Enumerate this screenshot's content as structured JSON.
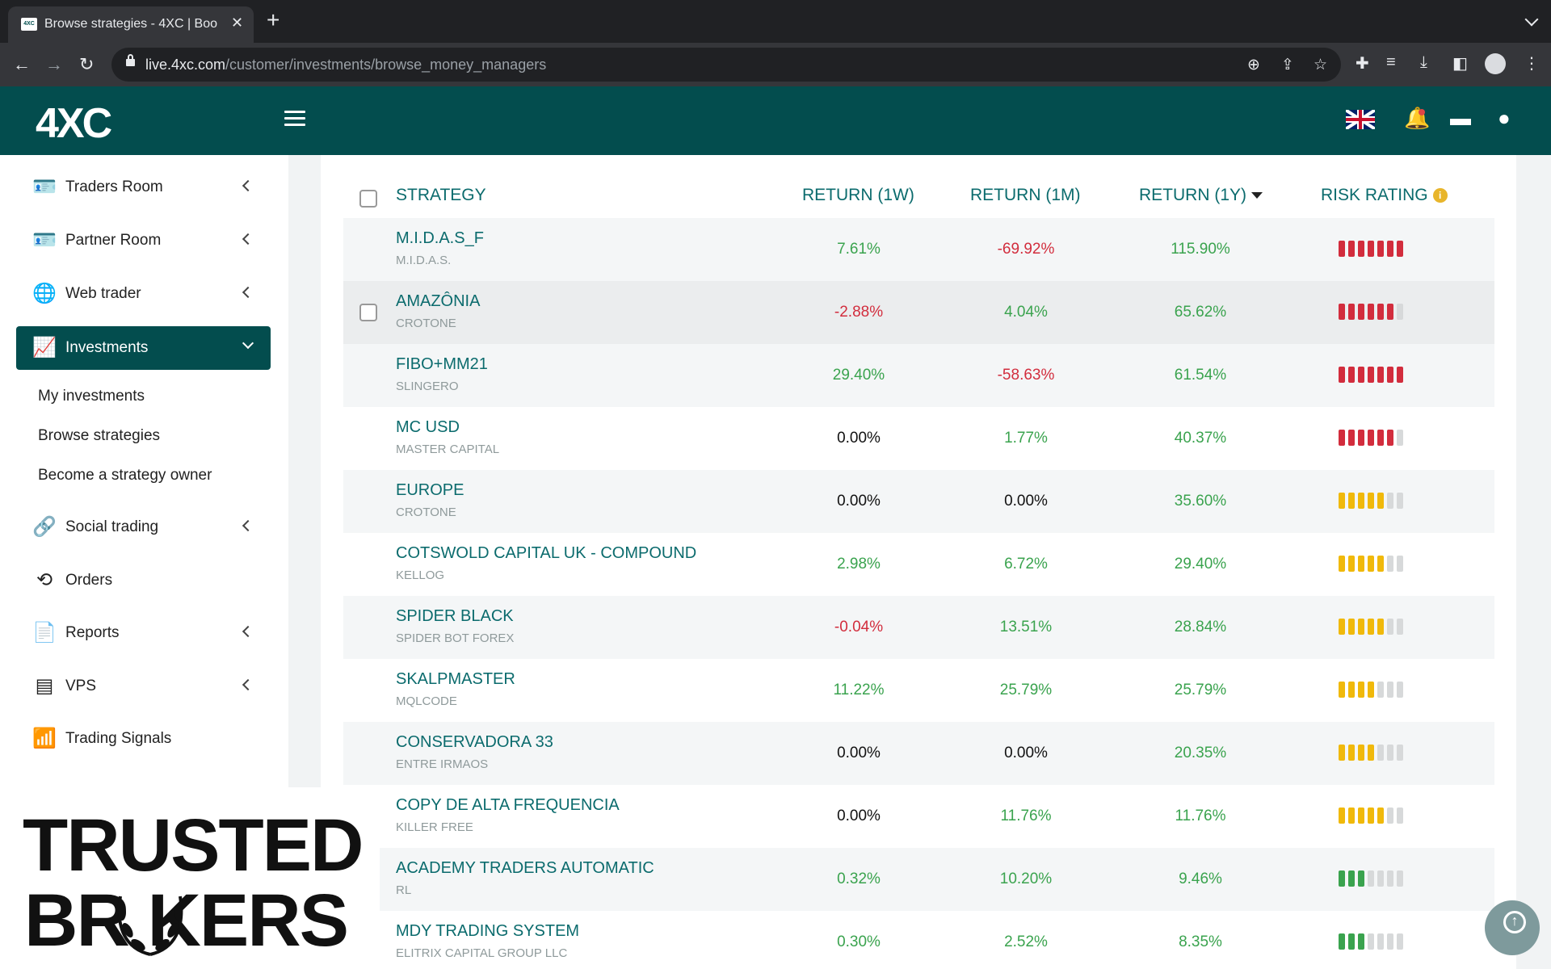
{
  "browser": {
    "tab_title": "Browse strategies - 4XC | Boo",
    "favicon_text": "4XC",
    "url_domain": "live.4xc.com",
    "url_path": "/customer/investments/browse_money_managers"
  },
  "header": {
    "logo": "4XC"
  },
  "sidebar": {
    "items": [
      {
        "label": "Traders Room",
        "icon": "id-card-icon",
        "glyph": "🪪"
      },
      {
        "label": "Partner Room",
        "icon": "id-card-icon",
        "glyph": "🪪"
      },
      {
        "label": "Web trader",
        "icon": "globe-icon",
        "glyph": "🌐"
      },
      {
        "label": "Investments",
        "icon": "chart-line-icon",
        "glyph": "📈"
      },
      {
        "label": "Social trading",
        "icon": "link-icon",
        "glyph": "🔗"
      },
      {
        "label": "Orders",
        "icon": "history-icon",
        "glyph": "⟲"
      },
      {
        "label": "Reports",
        "icon": "file-chart-icon",
        "glyph": "📄"
      },
      {
        "label": "VPS",
        "icon": "server-icon",
        "glyph": "▤"
      },
      {
        "label": "Trading Signals",
        "icon": "wifi-icon",
        "glyph": "📶"
      }
    ],
    "submenu": [
      "My investments",
      "Browse strategies",
      "Become a strategy owner"
    ]
  },
  "table": {
    "headers": {
      "strategy": "STRATEGY",
      "return_1w": "RETURN (1W)",
      "return_1m": "RETURN (1M)",
      "return_1y": "RETURN (1Y)",
      "risk": "RISK RATING"
    },
    "rows": [
      {
        "name": "M.I.D.A.S_F",
        "owner": "M.I.D.A.S.",
        "w": "7.61%",
        "m": "-69.92%",
        "y": "115.90%",
        "risk_filled": 7,
        "risk_color": "#d22d3d"
      },
      {
        "name": "AMAZÔNIA",
        "owner": "CROTONE",
        "w": "-2.88%",
        "m": "4.04%",
        "y": "65.62%",
        "risk_filled": 6,
        "risk_color": "#d22d3d"
      },
      {
        "name": "FIBO+MM21",
        "owner": "SLINGERO",
        "w": "29.40%",
        "m": "-58.63%",
        "y": "61.54%",
        "risk_filled": 7,
        "risk_color": "#d22d3d"
      },
      {
        "name": "MC USD",
        "owner": "MASTER CAPITAL",
        "w": "0.00%",
        "m": "1.77%",
        "y": "40.37%",
        "risk_filled": 6,
        "risk_color": "#d22d3d"
      },
      {
        "name": "EUROPE",
        "owner": "CROTONE",
        "w": "0.00%",
        "m": "0.00%",
        "y": "35.60%",
        "risk_filled": 5,
        "risk_color": "#f0b90b"
      },
      {
        "name": "COTSWOLD CAPITAL UK - COMPOUND",
        "owner": "KELLOG",
        "w": "2.98%",
        "m": "6.72%",
        "y": "29.40%",
        "risk_filled": 5,
        "risk_color": "#f0b90b"
      },
      {
        "name": "SPIDER BLACK",
        "owner": "SPIDER BOT FOREX",
        "w": "-0.04%",
        "m": "13.51%",
        "y": "28.84%",
        "risk_filled": 5,
        "risk_color": "#f0b90b"
      },
      {
        "name": "SKALPMASTER",
        "owner": "MQLCODE",
        "w": "11.22%",
        "m": "25.79%",
        "y": "25.79%",
        "risk_filled": 4,
        "risk_color": "#f0b90b"
      },
      {
        "name": "CONSERVADORA 33",
        "owner": "ENTRE IRMAOS",
        "w": "0.00%",
        "m": "0.00%",
        "y": "20.35%",
        "risk_filled": 4,
        "risk_color": "#f0b90b"
      },
      {
        "name": "COPY DE ALTA FREQUENCIA",
        "owner": "KILLER FREE",
        "w": "0.00%",
        "m": "11.76%",
        "y": "11.76%",
        "risk_filled": 5,
        "risk_color": "#f0b90b"
      },
      {
        "name": "ACADEMY TRADERS AUTOMATIC",
        "owner": "RL",
        "w": "0.32%",
        "m": "10.20%",
        "y": "9.46%",
        "risk_filled": 3,
        "risk_color": "#3aa34e"
      },
      {
        "name": "MDY TRADING SYSTEM",
        "owner": "ELITRIX CAPITAL GROUP LLC",
        "w": "0.30%",
        "m": "2.52%",
        "y": "8.35%",
        "risk_filled": 3,
        "risk_color": "#3aa34e"
      }
    ]
  },
  "watermark": {
    "line1": "TRUSTED",
    "line2": "BR  KERS"
  },
  "colors": {
    "brand": "#034d4e",
    "accent_text": "#0b6b6d",
    "positive": "#3aa34e",
    "negative": "#d22d3d",
    "risk_empty": "#d7d9da"
  }
}
